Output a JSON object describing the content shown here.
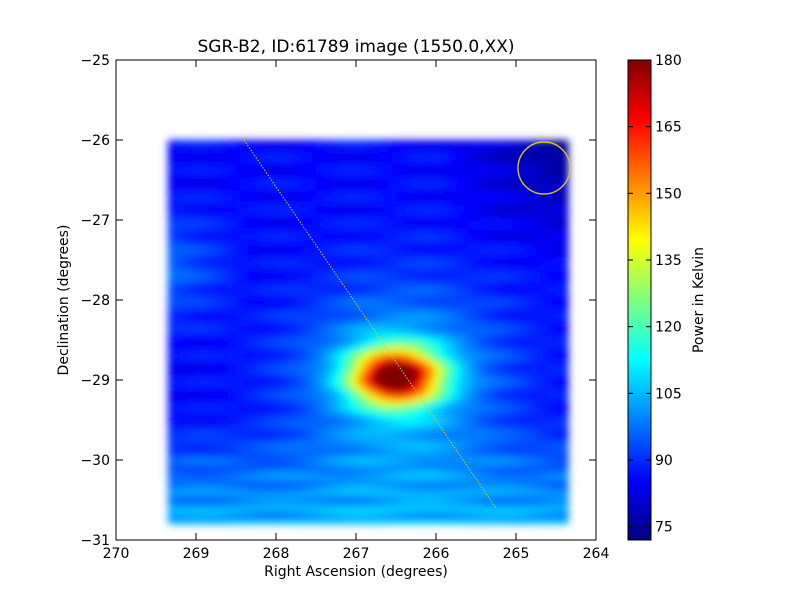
{
  "chart_data": {
    "type": "heatmap",
    "title": "SGR-B2, ID:61789 image (1550.0,XX)",
    "xlabel": "Right Ascension (degrees)",
    "ylabel": "Declination (degrees)",
    "xlim": [
      270,
      264
    ],
    "ylim": [
      -31,
      -25
    ],
    "x_reversed": true,
    "xticks": [
      270,
      269,
      268,
      267,
      266,
      265,
      264
    ],
    "yticks": [
      -25,
      -26,
      -27,
      -28,
      -29,
      -30,
      -31
    ],
    "xtick_labels": [
      "270",
      "269",
      "268",
      "267",
      "266",
      "265",
      "264"
    ],
    "ytick_labels": [
      "−25",
      "−26",
      "−27",
      "−28",
      "−29",
      "−30",
      "−31"
    ],
    "colormap": "jet",
    "colorbar": {
      "label": "Power in Kelvin",
      "min": 72,
      "max": 180,
      "ticks": [
        75,
        90,
        105,
        120,
        135,
        150,
        165,
        180
      ],
      "tick_labels": [
        "75",
        "90",
        "105",
        "120",
        "135",
        "150",
        "165",
        "180"
      ]
    },
    "map_extent": {
      "ra": [
        269.35,
        264.35
      ],
      "dec": [
        -30.8,
        -26.0
      ]
    },
    "peak": {
      "ra": 266.5,
      "dec": -28.95,
      "value": 180
    },
    "beam_circle": {
      "ra": 264.65,
      "dec": -26.35,
      "color": "#d4c42a"
    },
    "scan_line": {
      "start": {
        "ra": 268.4,
        "dec": -26.0
      },
      "end": {
        "ra": 265.25,
        "dec": -30.6
      },
      "color": "#c8d23a"
    },
    "grid": false
  }
}
